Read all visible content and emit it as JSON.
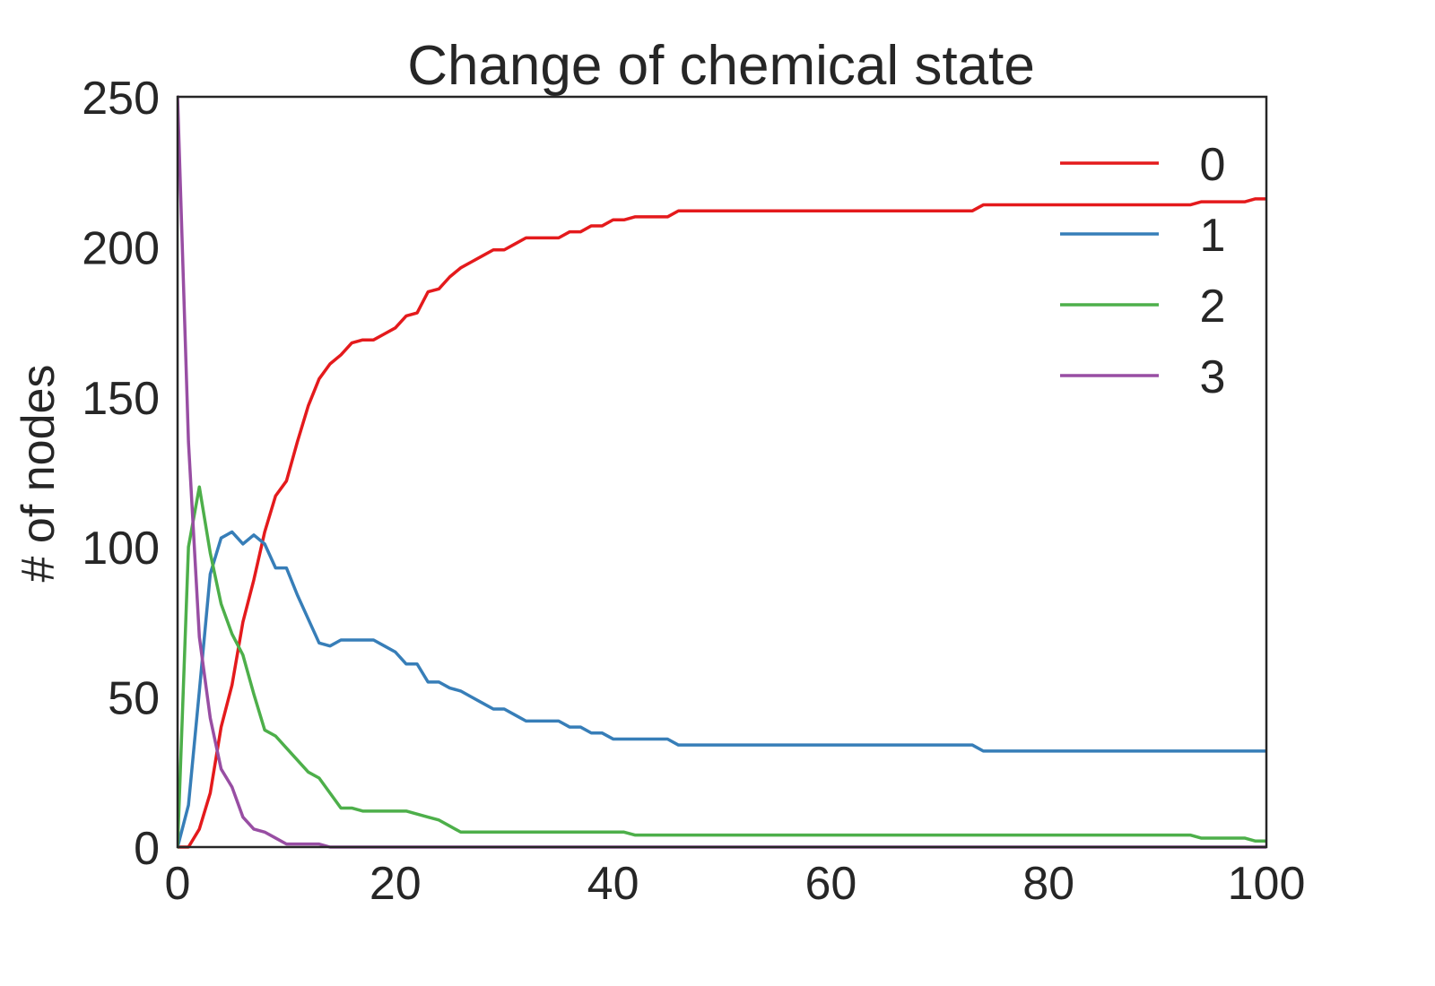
{
  "chart_data": {
    "type": "line",
    "title": "Change of chemical state",
    "xlabel": "",
    "ylabel": "# of nodes",
    "xlim": [
      0,
      100
    ],
    "ylim": [
      0,
      250
    ],
    "xticks": [
      0,
      20,
      40,
      60,
      80,
      100
    ],
    "yticks": [
      0,
      50,
      100,
      150,
      200,
      250
    ],
    "grid": false,
    "legend_position": "top-right",
    "series": [
      {
        "name": "0",
        "color": "#e41a1c",
        "x": [
          0,
          1,
          2,
          3,
          4,
          5,
          6,
          7,
          8,
          9,
          10,
          11,
          12,
          13,
          14,
          15,
          16,
          17,
          18,
          19,
          20,
          21,
          22,
          23,
          24,
          25,
          26,
          27,
          28,
          29,
          30,
          31,
          32,
          35,
          36,
          37,
          38,
          39,
          40,
          41,
          42,
          45,
          46,
          73,
          74,
          93,
          94,
          98,
          99,
          100
        ],
        "y": [
          0,
          0,
          6,
          18,
          40,
          54,
          75,
          89,
          105,
          117,
          122,
          135,
          147,
          156,
          161,
          164,
          168,
          169,
          169,
          171,
          173,
          177,
          178,
          185,
          186,
          190,
          193,
          195,
          197,
          199,
          199,
          201,
          203,
          203,
          205,
          205,
          207,
          207,
          209,
          209,
          210,
          210,
          212,
          212,
          214,
          214,
          215,
          215,
          216,
          216
        ]
      },
      {
        "name": "1",
        "color": "#377eb8",
        "x": [
          0,
          1,
          2,
          3,
          4,
          5,
          6,
          7,
          8,
          9,
          10,
          11,
          12,
          13,
          14,
          15,
          16,
          17,
          18,
          19,
          20,
          21,
          22,
          23,
          24,
          25,
          26,
          27,
          28,
          29,
          30,
          31,
          32,
          35,
          36,
          37,
          38,
          39,
          40,
          41,
          45,
          46,
          73,
          74,
          100
        ],
        "y": [
          0,
          14,
          52,
          91,
          103,
          105,
          101,
          104,
          101,
          93,
          93,
          84,
          76,
          68,
          67,
          69,
          69,
          69,
          69,
          67,
          65,
          61,
          61,
          55,
          55,
          53,
          52,
          50,
          48,
          46,
          46,
          44,
          42,
          42,
          40,
          40,
          38,
          38,
          36,
          36,
          36,
          34,
          34,
          32,
          32
        ]
      },
      {
        "name": "2",
        "color": "#4daf4a",
        "x": [
          0,
          1,
          2,
          3,
          4,
          5,
          6,
          7,
          8,
          9,
          10,
          11,
          12,
          13,
          14,
          15,
          16,
          17,
          18,
          19,
          20,
          21,
          22,
          23,
          24,
          25,
          26,
          27,
          28,
          29,
          30,
          31,
          32,
          35,
          36,
          37,
          38,
          39,
          40,
          41,
          42,
          45,
          46,
          73,
          74,
          93,
          94,
          98,
          99,
          100
        ],
        "y": [
          0,
          100,
          120,
          98,
          81,
          71,
          64,
          51,
          39,
          37,
          33,
          29,
          25,
          23,
          18,
          13,
          13,
          12,
          12,
          12,
          12,
          12,
          11,
          10,
          9,
          7,
          5,
          5,
          5,
          5,
          5,
          5,
          5,
          5,
          5,
          5,
          5,
          5,
          5,
          5,
          4,
          4,
          4,
          4,
          4,
          4,
          3,
          3,
          2,
          2
        ]
      },
      {
        "name": "3",
        "color": "#984ea3",
        "x": [
          0,
          1,
          2,
          3,
          4,
          5,
          6,
          7,
          8,
          9,
          10,
          11,
          12,
          13,
          14,
          15,
          100
        ],
        "y": [
          250,
          135,
          70,
          43,
          26,
          20,
          10,
          6,
          5,
          3,
          1,
          1,
          1,
          1,
          0,
          0,
          0
        ]
      }
    ]
  }
}
